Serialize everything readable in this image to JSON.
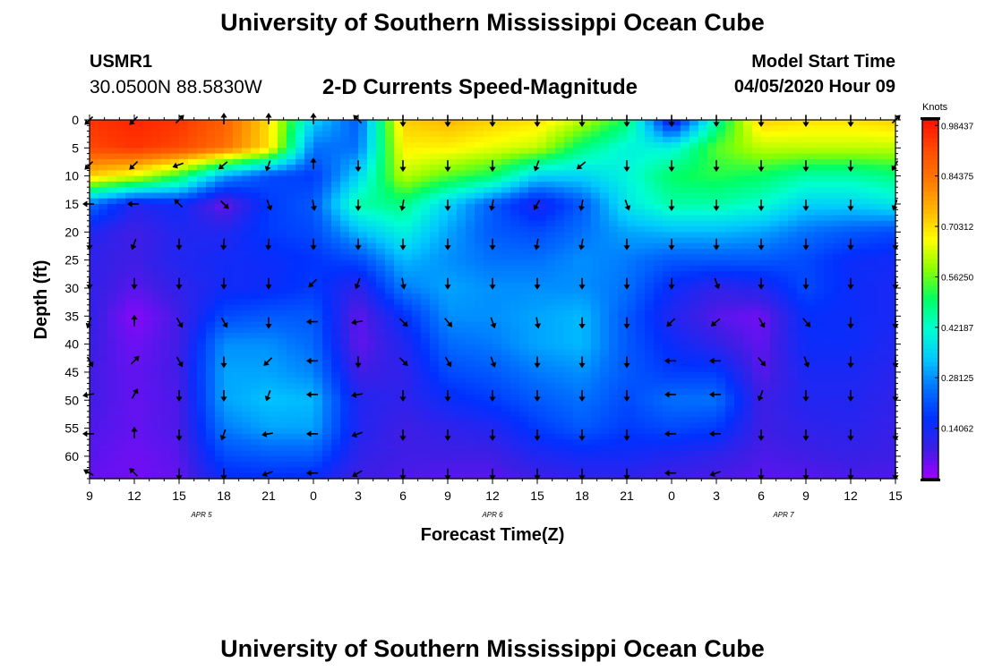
{
  "header": {
    "title": "University of Southern Mississippi Ocean Cube",
    "station": "USMR1",
    "coords": "30.0500N 88.5830W",
    "subtitle": "2-D Currents Speed-Magnitude",
    "model_start_label": "Model Start Time",
    "model_start_value": "04/05/2020 Hour 09"
  },
  "footer": {
    "title": "University of Southern Mississippi Ocean Cube"
  },
  "chart_data": {
    "type": "heatmap",
    "title": "2-D Currents Speed-Magnitude",
    "xlabel": "Forecast Time(Z)",
    "ylabel": "Depth (ft)",
    "x_ticks": [
      "9",
      "12",
      "15",
      "18",
      "21",
      "0",
      "3",
      "6",
      "9",
      "12",
      "15",
      "18",
      "21",
      "0",
      "3",
      "6",
      "9",
      "12",
      "15"
    ],
    "date_labels": [
      {
        "label": "APR 5",
        "at_tick": 2.5
      },
      {
        "label": "APR 6",
        "at_tick": 9
      },
      {
        "label": "APR 7",
        "at_tick": 15.5
      }
    ],
    "y_ticks": [
      0,
      5,
      10,
      15,
      20,
      25,
      30,
      35,
      40,
      45,
      50,
      55,
      60
    ],
    "ylim": [
      0,
      64
    ],
    "colorbar": {
      "title": "Knots",
      "ticks": [
        "0.98437",
        "0.84375",
        "0.70312",
        "0.56250",
        "0.42187",
        "0.28125",
        "0.14062"
      ],
      "tick_values": [
        0.98437,
        0.84375,
        0.70312,
        0.5625,
        0.42187,
        0.28125,
        0.14062
      ],
      "range": [
        0.0,
        1.0
      ],
      "colors": [
        "#a000ff",
        "#3c1ee6",
        "#0030ff",
        "#0070ff",
        "#00c8ff",
        "#00ffd2",
        "#00ff64",
        "#8cff00",
        "#ffff00",
        "#ffb400",
        "#ff7800",
        "#ff4a00",
        "#ff1000"
      ]
    },
    "speed_grid": {
      "x_index": [
        0,
        1,
        2,
        3,
        4,
        5,
        6,
        7,
        8,
        9,
        10,
        11,
        12,
        13,
        14,
        15,
        16,
        17,
        18
      ],
      "depth_ft": [
        0,
        5,
        10,
        15,
        20,
        25,
        30,
        35,
        40,
        45,
        50,
        55,
        60,
        64
      ],
      "values": [
        [
          0.95,
          0.97,
          0.95,
          0.88,
          0.7,
          0.35,
          0.22,
          0.72,
          0.75,
          0.72,
          0.7,
          0.62,
          0.5,
          0.1,
          0.45,
          0.72,
          0.7,
          0.7,
          0.72
        ],
        [
          0.92,
          0.95,
          0.92,
          0.85,
          0.7,
          0.25,
          0.25,
          0.68,
          0.68,
          0.65,
          0.62,
          0.48,
          0.4,
          0.4,
          0.55,
          0.62,
          0.62,
          0.62,
          0.62
        ],
        [
          0.72,
          0.65,
          0.52,
          0.3,
          0.2,
          0.18,
          0.35,
          0.62,
          0.55,
          0.5,
          0.35,
          0.35,
          0.4,
          0.5,
          0.52,
          0.5,
          0.45,
          0.45,
          0.48
        ],
        [
          0.25,
          0.12,
          0.15,
          0.04,
          0.18,
          0.22,
          0.45,
          0.48,
          0.35,
          0.22,
          0.12,
          0.22,
          0.38,
          0.45,
          0.45,
          0.42,
          0.35,
          0.35,
          0.38
        ],
        [
          0.12,
          0.08,
          0.12,
          0.12,
          0.18,
          0.2,
          0.32,
          0.4,
          0.3,
          0.22,
          0.2,
          0.25,
          0.3,
          0.32,
          0.32,
          0.3,
          0.25,
          0.22,
          0.2
        ],
        [
          0.1,
          0.08,
          0.12,
          0.14,
          0.15,
          0.17,
          0.2,
          0.32,
          0.28,
          0.25,
          0.25,
          0.28,
          0.26,
          0.22,
          0.22,
          0.22,
          0.2,
          0.15,
          0.14
        ],
        [
          0.1,
          0.06,
          0.1,
          0.14,
          0.15,
          0.18,
          0.1,
          0.26,
          0.3,
          0.28,
          0.28,
          0.28,
          0.25,
          0.15,
          0.1,
          0.12,
          0.2,
          0.15,
          0.13
        ],
        [
          0.1,
          0.02,
          0.08,
          0.2,
          0.22,
          0.22,
          0.05,
          0.16,
          0.28,
          0.28,
          0.3,
          0.32,
          0.22,
          0.12,
          0.06,
          0.04,
          0.16,
          0.15,
          0.13
        ],
        [
          0.09,
          0.04,
          0.08,
          0.28,
          0.28,
          0.24,
          0.05,
          0.12,
          0.24,
          0.26,
          0.3,
          0.32,
          0.22,
          0.15,
          0.1,
          0.05,
          0.15,
          0.15,
          0.12
        ],
        [
          0.08,
          0.05,
          0.08,
          0.3,
          0.3,
          0.27,
          0.08,
          0.1,
          0.2,
          0.22,
          0.26,
          0.28,
          0.22,
          0.18,
          0.18,
          0.06,
          0.13,
          0.13,
          0.11
        ],
        [
          0.08,
          0.05,
          0.07,
          0.3,
          0.33,
          0.32,
          0.12,
          0.1,
          0.15,
          0.18,
          0.22,
          0.25,
          0.2,
          0.25,
          0.25,
          0.08,
          0.12,
          0.12,
          0.1
        ],
        [
          0.07,
          0.05,
          0.07,
          0.26,
          0.3,
          0.3,
          0.12,
          0.08,
          0.1,
          0.12,
          0.18,
          0.22,
          0.18,
          0.2,
          0.18,
          0.08,
          0.1,
          0.11,
          0.09
        ],
        [
          0.06,
          0.04,
          0.06,
          0.2,
          0.22,
          0.22,
          0.1,
          0.08,
          0.08,
          0.08,
          0.12,
          0.14,
          0.14,
          0.12,
          0.1,
          0.07,
          0.08,
          0.09,
          0.08
        ],
        [
          0.05,
          0.04,
          0.05,
          0.15,
          0.16,
          0.15,
          0.08,
          0.07,
          0.06,
          0.06,
          0.08,
          0.1,
          0.1,
          0.08,
          0.07,
          0.06,
          0.06,
          0.07,
          0.07
        ]
      ]
    },
    "arrow_depths_ft": [
      0,
      8,
      15,
      22,
      29,
      36,
      43,
      49,
      56,
      63
    ],
    "arrow_direction_deg": [
      [
        225,
        225,
        45,
        0,
        0,
        0,
        315,
        180,
        180,
        180,
        180,
        180,
        180,
        180,
        180,
        180,
        180,
        180,
        45
      ],
      [
        225,
        225,
        250,
        230,
        200,
        0,
        180,
        180,
        180,
        180,
        200,
        230,
        180,
        180,
        180,
        180,
        180,
        180,
        210
      ],
      [
        270,
        270,
        315,
        135,
        160,
        170,
        180,
        190,
        180,
        190,
        210,
        190,
        160,
        180,
        180,
        180,
        180,
        180,
        200
      ],
      [
        180,
        200,
        180,
        185,
        185,
        180,
        180,
        180,
        180,
        180,
        190,
        190,
        180,
        180,
        180,
        180,
        180,
        180,
        180
      ],
      [
        180,
        180,
        180,
        180,
        180,
        225,
        200,
        170,
        180,
        180,
        180,
        180,
        180,
        180,
        160,
        180,
        180,
        180,
        180
      ],
      [
        200,
        0,
        150,
        150,
        180,
        270,
        260,
        135,
        140,
        160,
        170,
        180,
        180,
        225,
        230,
        150,
        140,
        180,
        180
      ],
      [
        150,
        45,
        150,
        180,
        225,
        270,
        180,
        135,
        150,
        160,
        180,
        180,
        180,
        270,
        270,
        140,
        160,
        180,
        180
      ],
      [
        260,
        30,
        180,
        180,
        200,
        270,
        260,
        180,
        180,
        180,
        180,
        180,
        180,
        270,
        270,
        200,
        180,
        180,
        180
      ],
      [
        270,
        0,
        180,
        200,
        260,
        270,
        250,
        180,
        180,
        180,
        180,
        180,
        180,
        270,
        270,
        180,
        180,
        180,
        180
      ],
      [
        300,
        315,
        180,
        180,
        250,
        270,
        240,
        180,
        180,
        180,
        180,
        180,
        180,
        270,
        250,
        180,
        180,
        180,
        180
      ]
    ]
  }
}
